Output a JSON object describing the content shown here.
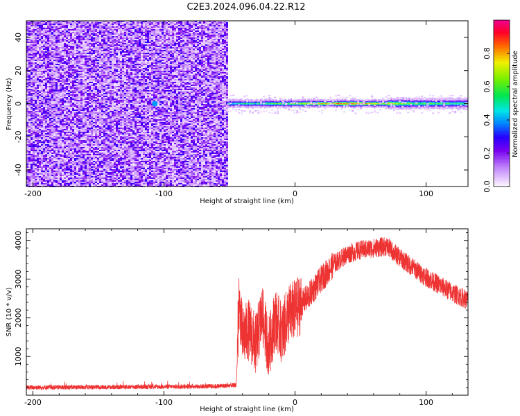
{
  "title": "C2E3.2024.096.04.22.R12",
  "chart_data": [
    {
      "type": "heatmap",
      "xlabel": "Height of straight line (km)",
      "ylabel": "Frequency (Hz)",
      "xlim": [
        -205,
        132
      ],
      "ylim": [
        -50,
        50
      ],
      "xticks": [
        -200,
        -100,
        0,
        100
      ],
      "yticks": [
        -40,
        -20,
        0,
        20,
        40
      ],
      "noise_region_x": [
        -205,
        -52
      ],
      "signal_region_x": [
        -52,
        132
      ],
      "signal_frequency": 0,
      "colorbar": {
        "label": "Normalized spectral amplitude",
        "range": [
          0.0,
          1.0
        ],
        "ticks": [
          "0.0",
          "0.2",
          "0.4",
          "0.6",
          "0.8"
        ],
        "tick_values": [
          0.0,
          0.2,
          0.4,
          0.6,
          0.8
        ]
      }
    },
    {
      "type": "line",
      "xlabel": "Height of straight line (km)",
      "ylabel": "SNR (10 * v/v)",
      "xlim": [
        -205,
        132
      ],
      "ylim": [
        0,
        4300
      ],
      "xticks": [
        -200,
        -100,
        0,
        100
      ],
      "yticks": [
        1000,
        2000,
        3000,
        4000
      ],
      "color": "#ee3333",
      "x": [
        -205,
        -150,
        -100,
        -60,
        -45,
        -44,
        -43,
        -40,
        -35,
        -30,
        -25,
        -20,
        -15,
        -10,
        -5,
        0,
        10,
        20,
        30,
        40,
        50,
        60,
        70,
        80,
        90,
        100,
        110,
        120,
        132
      ],
      "y": [
        200,
        210,
        220,
        230,
        260,
        900,
        2500,
        1500,
        1700,
        1300,
        2100,
        1200,
        2000,
        1600,
        2100,
        2200,
        2550,
        3000,
        3400,
        3650,
        3750,
        3800,
        3850,
        3550,
        3300,
        3050,
        2850,
        2650,
        2450
      ]
    }
  ]
}
